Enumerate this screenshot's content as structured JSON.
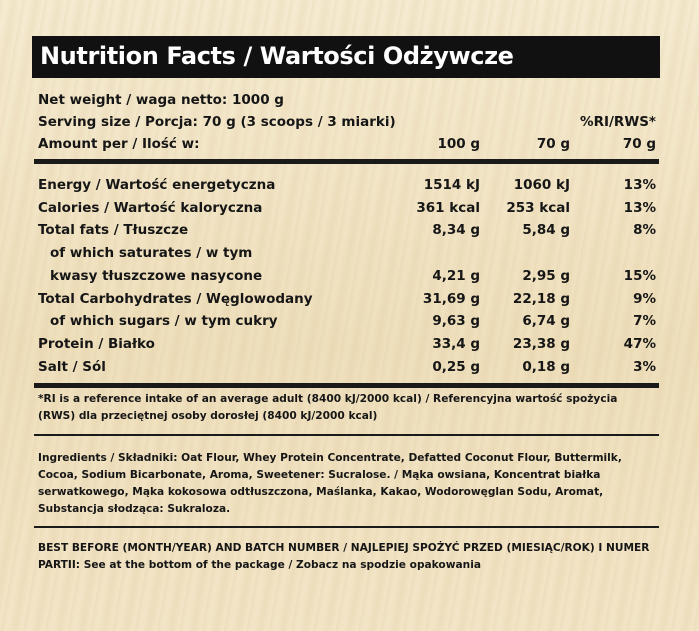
{
  "title": "Nutrition Facts / Wartości Odżywcze",
  "net_weight": "Net weight / waga netto: 1000 g",
  "serving_size": "Serving size / Porcja: 70 g (3 scoops / 3 miarki)",
  "ri_header": "%RI/RWS*",
  "amount_label": "Amount per / Ilość w:",
  "amount_cols": [
    "100 g",
    "70 g",
    "70 g"
  ],
  "nutrients": [
    {
      "label": "Energy / Wartość energetyczna",
      "v100": "1514 kJ",
      "v70": "1060 kJ",
      "ri": "13%"
    },
    {
      "label": "Calories / Wartość kaloryczna",
      "v100": "361 kcal",
      "v70": "253 kcal",
      "ri": "13%"
    },
    {
      "label": "Total fats / Tłuszcze",
      "v100": "8,34 g",
      "v70": "5,84 g",
      "ri": "8%"
    },
    {
      "label": "of which saturates / w tym",
      "v100": "",
      "v70": "",
      "ri": ""
    },
    {
      "label": "kwasy tłuszczowe nasycone",
      "v100": "4,21 g",
      "v70": "2,95 g",
      "ri": "15%"
    },
    {
      "label": "Total Carbohydrates / Węglowodany",
      "v100": "31,69 g",
      "v70": "22,18 g",
      "ri": "9%"
    },
    {
      "label": "of which sugars / w tym cukry",
      "v100": "9,63 g",
      "v70": "6,74 g",
      "ri": "7%"
    },
    {
      "label": "Protein / Białko",
      "v100": "33,4 g",
      "v70": "23,38 g",
      "ri": "47%"
    },
    {
      "label": "Salt / Sól",
      "v100": "0,25 g",
      "v70": "0,18 g",
      "ri": "3%"
    }
  ],
  "footnote": "*RI is a reference intake of an average adult (8400 kJ/2000 kcal) / Referencyjna wartość spożycia (RWS) dla przeciętnej osoby dorosłej (8400 kJ/2000 kcal)",
  "ingredients": "Ingredients / Składniki: Oat Flour, Whey Protein Concentrate, Defatted Coconut Flour, Buttermilk, Cocoa, Sodium Bicarbonate, Aroma, Sweetener: Sucralose. / Mąka owsiana, Koncentrat białka serwatkowego, Mąka kokosowa odtłuszczona, Maślanka, Kakao, Wodorowęglan Sodu, Aromat, Substancja słodząca: Sukraloza.",
  "best_before": "BEST BEFORE (MONTH/YEAR) AND BATCH NUMBER / NAJLEPIEJ SPOŻYĆ PRZED (MIESIĄC/ROK) I NUMER PARTII: See at the bottom of the package / Zobacz na spodzie opakowania"
}
